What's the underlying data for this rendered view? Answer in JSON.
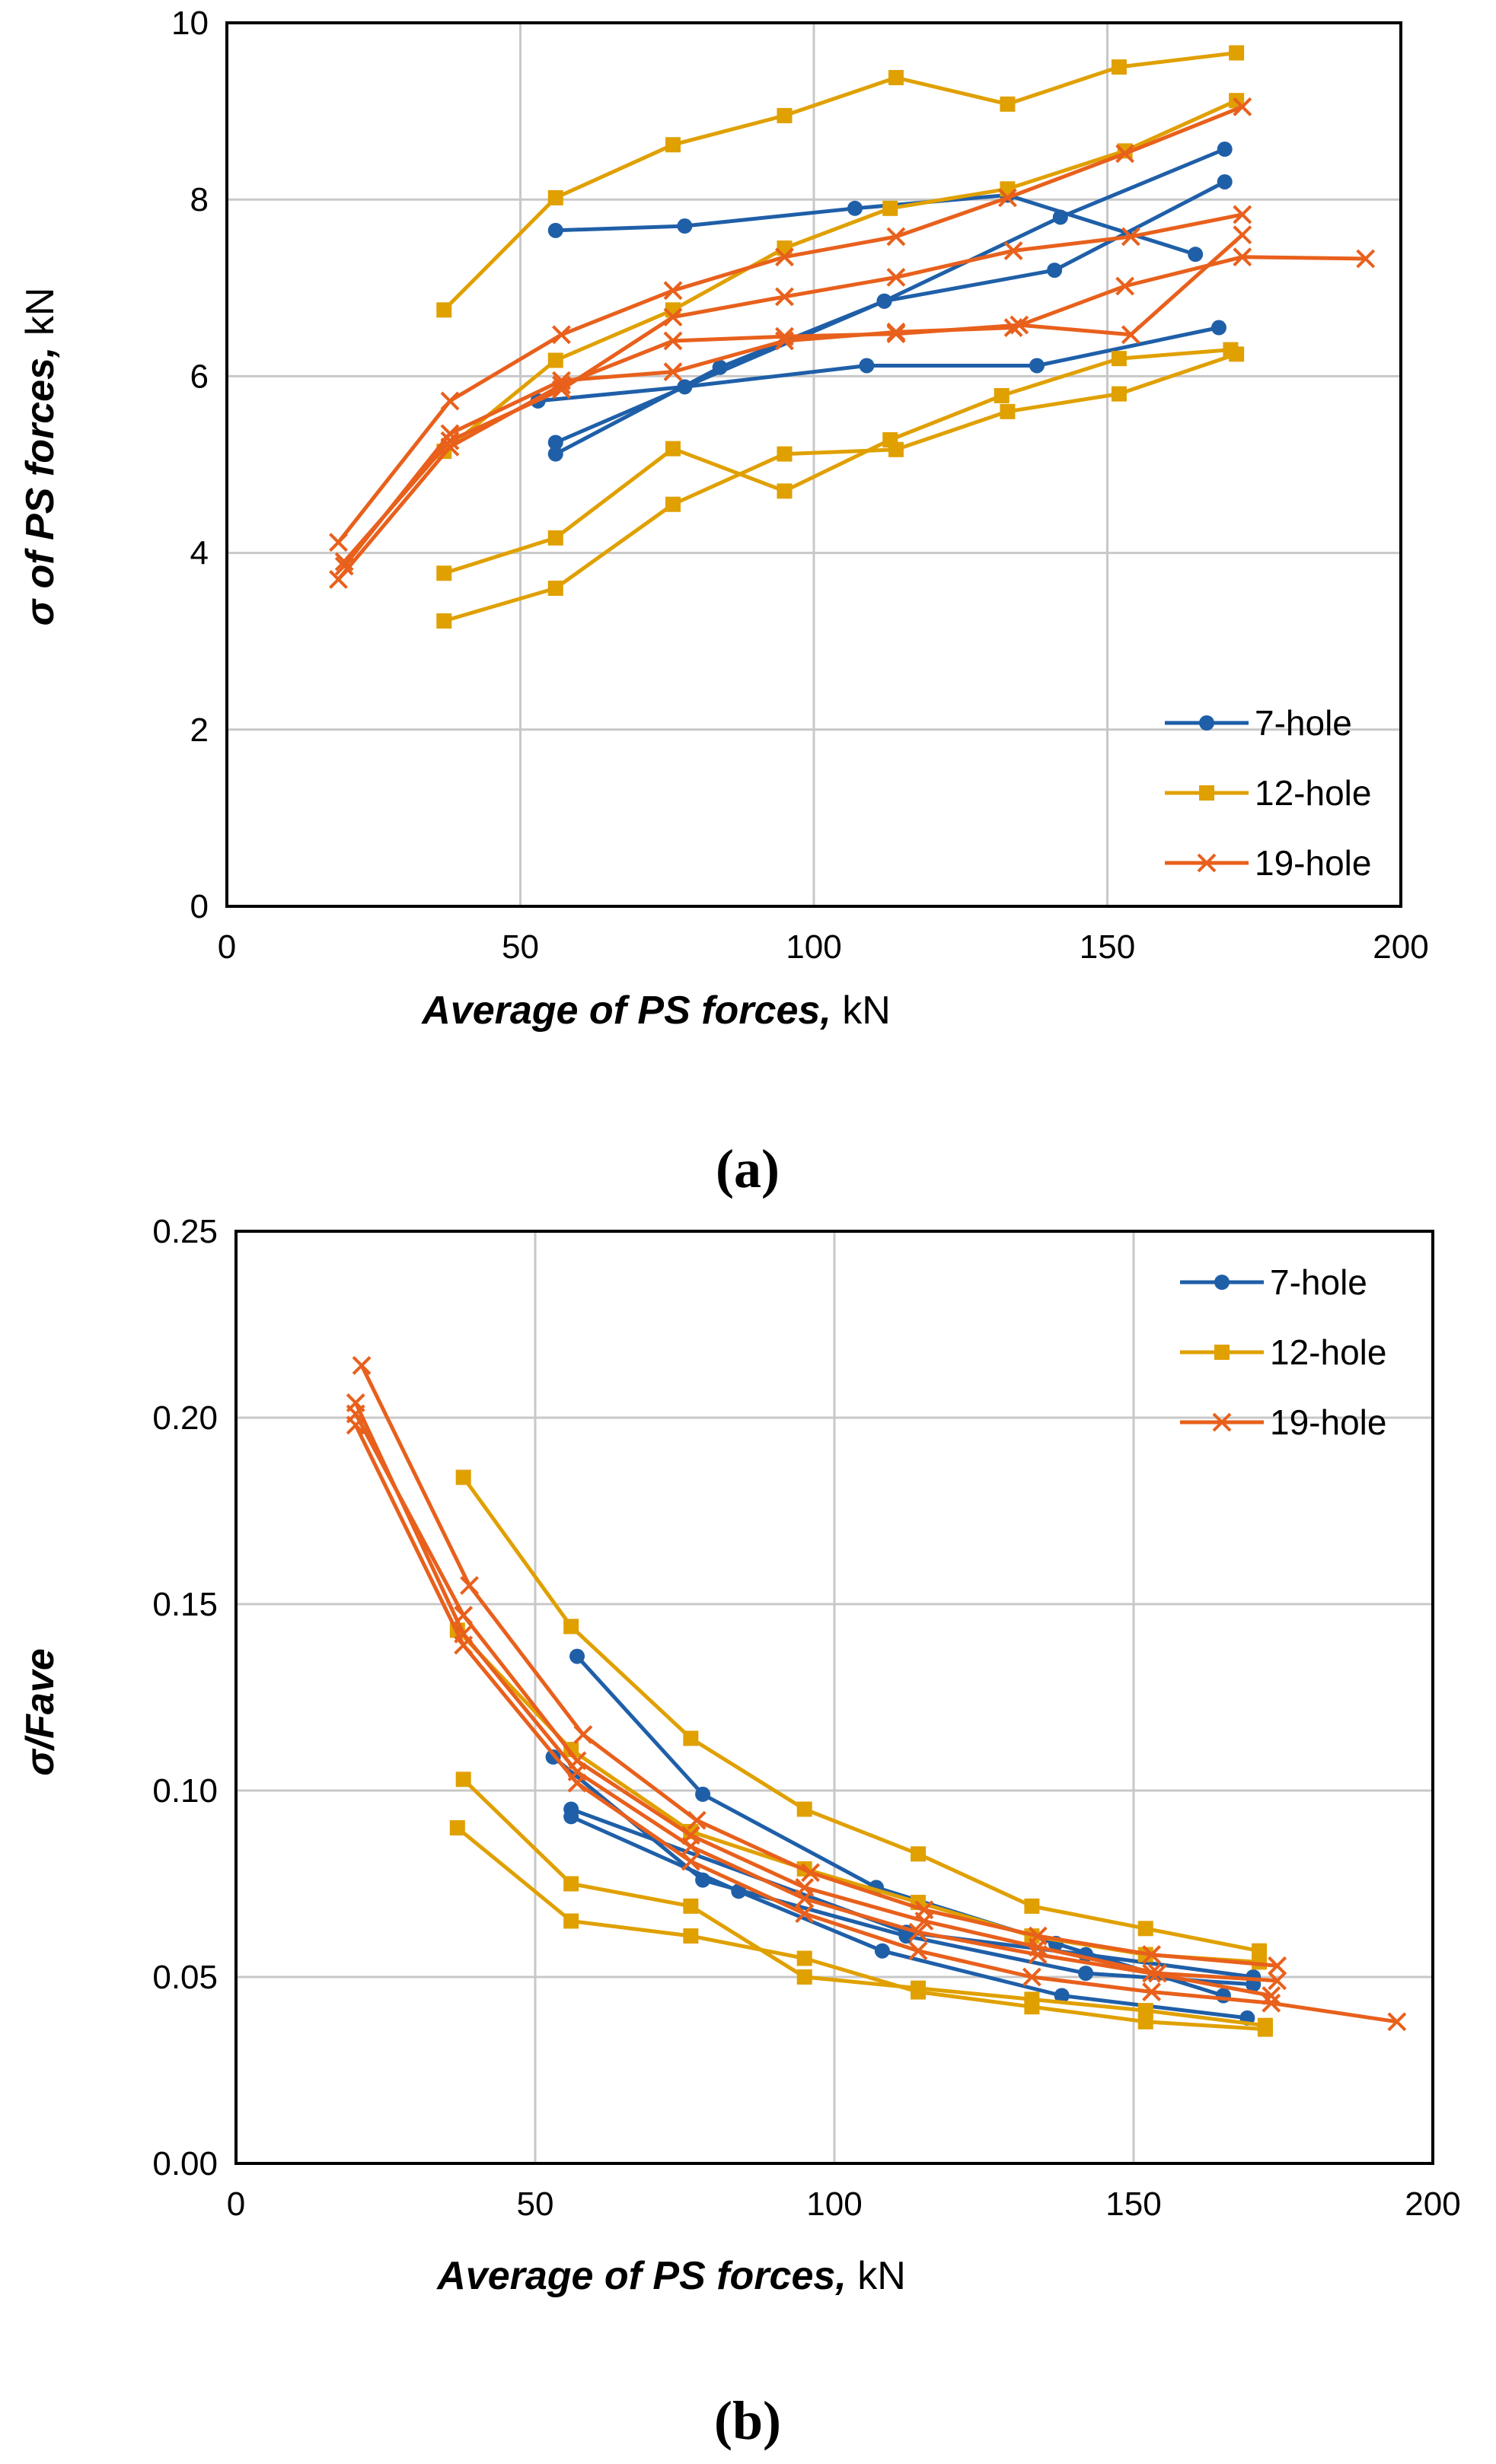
{
  "figure": {
    "panels": [
      {
        "label": "(a)"
      },
      {
        "label": "(b)"
      }
    ]
  },
  "colors": {
    "7-hole": "#1f5fa8",
    "12-hole": "#e0a000",
    "19-hole": "#e8601c",
    "grid": "#c8c8c8",
    "axis": "#000000"
  },
  "chart_data": [
    {
      "type": "line",
      "panel": "(a)",
      "title": "",
      "xlabel_italic": "Average of PS forces,",
      "xlabel_unit": " kN",
      "ylabel_italic": "σ of PS forces,",
      "ylabel_unit": " kN",
      "xlim": [
        0,
        200
      ],
      "ylim": [
        0,
        10
      ],
      "xticks": [
        0,
        50,
        100,
        150,
        200
      ],
      "yticks": [
        0,
        2,
        4,
        6,
        8,
        10
      ],
      "grid": true,
      "legend": {
        "position": "bottom-right",
        "entries": [
          "7-hole",
          "12-hole",
          "19-hole"
        ]
      },
      "series": [
        {
          "name": "7-hole",
          "marker": "circle",
          "x": [
            56,
            78,
            107,
            133,
            165
          ],
          "y": [
            7.65,
            7.7,
            7.9,
            8.05,
            7.38
          ]
        },
        {
          "name": "7-hole",
          "marker": "circle",
          "x": [
            56,
            112,
            142,
            170
          ],
          "y": [
            5.25,
            6.85,
            7.8,
            8.57
          ]
        },
        {
          "name": "7-hole",
          "marker": "circle",
          "x": [
            56,
            84,
            112,
            141,
            170
          ],
          "y": [
            5.12,
            6.1,
            6.85,
            7.2,
            8.2
          ]
        },
        {
          "name": "7-hole",
          "marker": "circle",
          "x": [
            53,
            78,
            109,
            138,
            169
          ],
          "y": [
            5.72,
            5.88,
            6.12,
            6.12,
            6.55
          ]
        },
        {
          "name": "12-hole",
          "marker": "square",
          "x": [
            37,
            56,
            76,
            95,
            114,
            133,
            152,
            172
          ],
          "y": [
            6.75,
            8.02,
            8.62,
            8.95,
            9.38,
            9.08,
            9.5,
            9.66
          ]
        },
        {
          "name": "12-hole",
          "marker": "square",
          "x": [
            37,
            56,
            76,
            95,
            113,
            133,
            153,
            172
          ],
          "y": [
            5.15,
            6.18,
            6.75,
            7.45,
            7.9,
            8.12,
            8.55,
            9.12
          ]
        },
        {
          "name": "12-hole",
          "marker": "square",
          "x": [
            37,
            56,
            76,
            95,
            113,
            132,
            152,
            171
          ],
          "y": [
            3.77,
            4.17,
            5.18,
            4.7,
            5.28,
            5.78,
            6.2,
            6.3
          ]
        },
        {
          "name": "12-hole",
          "marker": "square",
          "x": [
            37,
            56,
            76,
            95,
            114,
            133,
            152,
            172
          ],
          "y": [
            3.23,
            3.6,
            4.55,
            5.12,
            5.17,
            5.6,
            5.8,
            6.25
          ]
        },
        {
          "name": "19-hole",
          "marker": "x",
          "x": [
            19,
            38,
            57,
            76,
            95,
            114,
            133,
            153,
            173
          ],
          "y": [
            4.12,
            5.72,
            6.47,
            6.97,
            7.35,
            7.58,
            8.02,
            8.52,
            9.05
          ]
        },
        {
          "name": "19-hole",
          "marker": "x",
          "x": [
            19,
            38,
            57,
            76,
            95,
            114,
            135,
            154,
            173
          ],
          "y": [
            3.7,
            5.2,
            5.9,
            6.4,
            6.45,
            6.48,
            6.58,
            6.47,
            7.6
          ]
        },
        {
          "name": "19-hole",
          "marker": "x",
          "x": [
            20,
            38,
            57,
            76,
            95,
            114,
            134,
            153,
            173,
            194
          ],
          "y": [
            3.85,
            5.35,
            5.95,
            6.05,
            6.4,
            6.5,
            6.55,
            7.02,
            7.35,
            7.33
          ]
        },
        {
          "name": "19-hole",
          "marker": "x",
          "x": [
            20,
            38,
            57,
            76,
            95,
            114,
            134,
            154,
            173
          ],
          "y": [
            3.9,
            5.27,
            5.85,
            6.67,
            6.9,
            7.12,
            7.42,
            7.58,
            7.83
          ]
        }
      ]
    },
    {
      "type": "line",
      "panel": "(b)",
      "title": "",
      "xlabel_italic": "Average of PS forces,",
      "xlabel_unit": " kN",
      "ylabel_italic": "σ/Fave",
      "ylabel_unit": "",
      "xlim": [
        0,
        200
      ],
      "ylim": [
        0,
        0.25
      ],
      "xticks": [
        0,
        50,
        100,
        150,
        200
      ],
      "yticks": [
        0.0,
        0.05,
        0.1,
        0.15,
        0.2,
        0.25
      ],
      "ytick_labels": [
        "0.00",
        "0.05",
        "0.10",
        "0.15",
        "0.20",
        "0.25"
      ],
      "grid": true,
      "legend": {
        "position": "top-right",
        "entries": [
          "7-hole",
          "12-hole",
          "19-hole"
        ]
      },
      "series": [
        {
          "name": "7-hole",
          "marker": "circle",
          "x": [
            57,
            78,
            107,
            137,
            165
          ],
          "y": [
            0.136,
            0.099,
            0.074,
            0.059,
            0.045
          ]
        },
        {
          "name": "7-hole",
          "marker": "circle",
          "x": [
            56,
            112,
            142,
            170
          ],
          "y": [
            0.095,
            0.062,
            0.056,
            0.05
          ]
        },
        {
          "name": "7-hole",
          "marker": "circle",
          "x": [
            56,
            84,
            108,
            138,
            169
          ],
          "y": [
            0.093,
            0.073,
            0.057,
            0.045,
            0.039
          ]
        },
        {
          "name": "7-hole",
          "marker": "circle",
          "x": [
            53,
            78,
            112,
            142,
            170
          ],
          "y": [
            0.109,
            0.076,
            0.061,
            0.051,
            0.048
          ]
        },
        {
          "name": "12-hole",
          "marker": "square",
          "x": [
            38,
            56,
            76,
            95,
            114,
            133,
            152,
            171
          ],
          "y": [
            0.184,
            0.144,
            0.114,
            0.095,
            0.083,
            0.069,
            0.063,
            0.057
          ]
        },
        {
          "name": "12-hole",
          "marker": "square",
          "x": [
            37,
            56,
            76,
            95,
            114,
            133,
            152,
            171
          ],
          "y": [
            0.143,
            0.111,
            0.089,
            0.079,
            0.07,
            0.061,
            0.056,
            0.054
          ]
        },
        {
          "name": "12-hole",
          "marker": "square",
          "x": [
            38,
            56,
            76,
            95,
            114,
            133,
            152,
            172
          ],
          "y": [
            0.103,
            0.075,
            0.069,
            0.05,
            0.047,
            0.044,
            0.041,
            0.037
          ]
        },
        {
          "name": "12-hole",
          "marker": "square",
          "x": [
            37,
            56,
            76,
            95,
            114,
            133,
            152,
            172
          ],
          "y": [
            0.09,
            0.065,
            0.061,
            0.055,
            0.046,
            0.042,
            0.038,
            0.036
          ]
        },
        {
          "name": "19-hole",
          "marker": "x",
          "x": [
            21,
            39,
            58,
            77,
            96,
            115,
            134,
            153,
            174
          ],
          "y": [
            0.214,
            0.155,
            0.115,
            0.092,
            0.078,
            0.068,
            0.061,
            0.056,
            0.053
          ]
        },
        {
          "name": "19-hole",
          "marker": "x",
          "x": [
            20,
            38,
            57,
            76,
            95,
            114,
            134,
            153,
            173
          ],
          "y": [
            0.204,
            0.142,
            0.105,
            0.085,
            0.071,
            0.062,
            0.056,
            0.051,
            0.045
          ]
        },
        {
          "name": "19-hole",
          "marker": "x",
          "x": [
            20,
            38,
            57,
            76,
            95,
            114,
            133,
            153,
            173,
            194
          ],
          "y": [
            0.198,
            0.139,
            0.102,
            0.081,
            0.067,
            0.057,
            0.05,
            0.046,
            0.043,
            0.038
          ]
        },
        {
          "name": "19-hole",
          "marker": "x",
          "x": [
            20,
            38,
            57,
            76,
            95,
            115,
            134,
            154,
            174
          ],
          "y": [
            0.201,
            0.147,
            0.108,
            0.088,
            0.074,
            0.065,
            0.058,
            0.051,
            0.049
          ]
        }
      ]
    }
  ]
}
